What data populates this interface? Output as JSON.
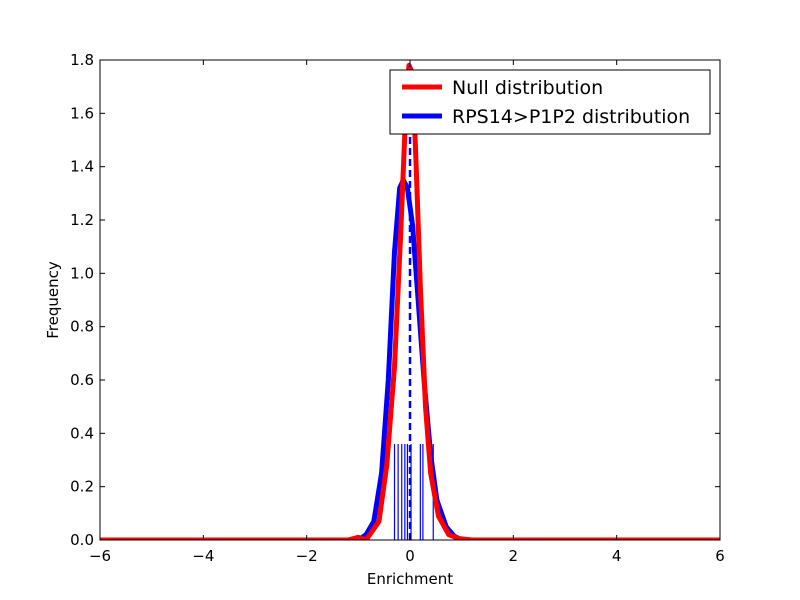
{
  "chart_data": {
    "type": "line",
    "title": "",
    "xlabel": "Enrichment",
    "ylabel": "Frequency",
    "xlim": [
      -6,
      6
    ],
    "ylim": [
      0,
      1.8
    ],
    "xticks": [
      -6,
      -4,
      -2,
      0,
      2,
      4,
      6
    ],
    "xtick_labels": [
      "−6",
      "−4",
      "−2",
      "0",
      "2",
      "4",
      "6"
    ],
    "yticks": [
      0.0,
      0.2,
      0.4,
      0.6,
      0.8,
      1.0,
      1.2,
      1.4,
      1.6,
      1.8
    ],
    "ytick_labels": [
      "0.0",
      "0.2",
      "0.4",
      "0.6",
      "0.8",
      "1.0",
      "1.2",
      "1.4",
      "1.6",
      "1.8"
    ],
    "grid": false,
    "legend_position": "top-right",
    "series": [
      {
        "name": "Null distribution",
        "color": "#ff0000",
        "points": [
          [
            -6,
            0
          ],
          [
            -1.2,
            0
          ],
          [
            -1.0,
            0.01
          ],
          [
            -0.85,
            0.0
          ],
          [
            -0.6,
            0.07
          ],
          [
            -0.45,
            0.28
          ],
          [
            -0.3,
            0.65
          ],
          [
            -0.18,
            1.15
          ],
          [
            -0.08,
            1.62
          ],
          [
            -0.02,
            1.78
          ],
          [
            0.05,
            1.75
          ],
          [
            0.12,
            1.4
          ],
          [
            0.2,
            0.95
          ],
          [
            0.3,
            0.5
          ],
          [
            0.4,
            0.25
          ],
          [
            0.55,
            0.09
          ],
          [
            0.75,
            0.02
          ],
          [
            0.95,
            0.005
          ],
          [
            1.2,
            0
          ],
          [
            6,
            0
          ]
        ]
      },
      {
        "name": "RPS14>P1P2 distribution",
        "color": "#0000ff",
        "points": [
          [
            -6,
            0
          ],
          [
            -1.0,
            0
          ],
          [
            -0.85,
            0.02
          ],
          [
            -0.7,
            0.07
          ],
          [
            -0.55,
            0.25
          ],
          [
            -0.42,
            0.6
          ],
          [
            -0.3,
            1.08
          ],
          [
            -0.2,
            1.32
          ],
          [
            -0.13,
            1.35
          ],
          [
            -0.05,
            1.32
          ],
          [
            0.05,
            1.18
          ],
          [
            0.15,
            0.92
          ],
          [
            0.28,
            0.58
          ],
          [
            0.4,
            0.32
          ],
          [
            0.52,
            0.15
          ],
          [
            0.7,
            0.05
          ],
          [
            0.85,
            0.015
          ],
          [
            1.0,
            0
          ],
          [
            6,
            0
          ]
        ]
      }
    ],
    "mean_line": {
      "x": 0.0,
      "y_top": 1.78,
      "color": "#0000ff"
    },
    "rug": {
      "x": [
        -0.3,
        -0.23,
        -0.16,
        -0.1,
        -0.05,
        0.02,
        0.2,
        0.25,
        0.45
      ],
      "height": 0.36,
      "color": "#0000ff"
    }
  }
}
